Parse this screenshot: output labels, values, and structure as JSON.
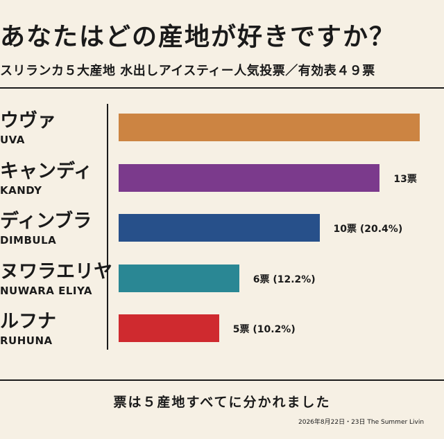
{
  "title": "あなたはどの産地が好きですか？",
  "subtitle": "スリランカ５大産地 水出しアイスティー人気投票／有効表４９票",
  "footer_note": "票は５産地すべてに分かれました",
  "credit": "2026年8月22日・23日 The Summer Livin",
  "chart_data": {
    "type": "bar",
    "orientation": "horizontal",
    "categories": [
      {
        "ja": "ウヴァ",
        "en": "UVA"
      },
      {
        "ja": "キャンディ",
        "en": "KANDY"
      },
      {
        "ja": "ディンブラ",
        "en": "DIMBULA"
      },
      {
        "ja": "ヌワラエリヤ",
        "en": "NUWARA ELIYA"
      },
      {
        "ja": "ルフナ",
        "en": "RUHUNA"
      }
    ],
    "values": [
      15,
      13,
      10,
      6,
      5
    ],
    "labels": [
      "",
      "13票",
      "10票 (20.4%)",
      "6票 (12.2%)",
      "5票 (10.2%)"
    ],
    "colors": [
      "#cc8442",
      "#7b3a8c",
      "#27508a",
      "#2a8794",
      "#cf2a2f"
    ],
    "xlim": [
      0,
      16.2
    ],
    "grid": false,
    "legend": "none"
  }
}
